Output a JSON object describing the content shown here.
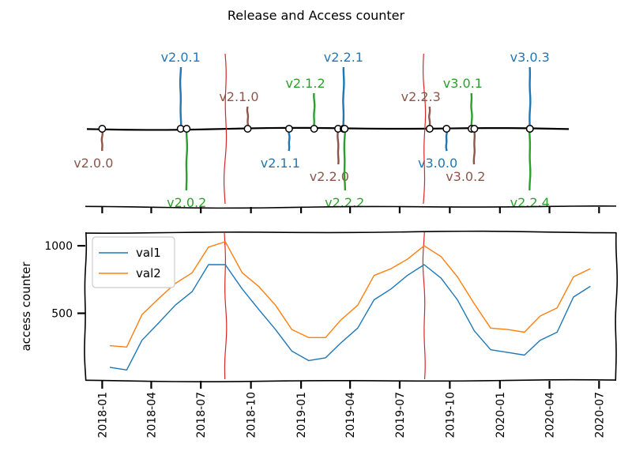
{
  "title": "Release and Access counter",
  "colors": {
    "blue": "#1f77b4",
    "orange": "#ff7f0e",
    "green": "#2ca02c",
    "brown": "#8c564b",
    "red": "#d62728"
  },
  "chart_data": [
    {
      "type": "timeline",
      "title": "Release and Access counter",
      "releases": [
        {
          "name": "v2.0.0",
          "date": "2018-01-01",
          "color": "brown",
          "level": -1
        },
        {
          "name": "v2.0.1",
          "date": "2018-05-25",
          "color": "blue",
          "level": 4
        },
        {
          "name": "v2.0.2",
          "date": "2018-06-05",
          "color": "green",
          "level": -4
        },
        {
          "name": "v2.1.0",
          "date": "2018-09-25",
          "color": "brown",
          "level": 1
        },
        {
          "name": "v2.1.1",
          "date": "2018-12-10",
          "color": "blue",
          "level": -1
        },
        {
          "name": "v2.1.2",
          "date": "2019-01-25",
          "color": "green",
          "level": 2
        },
        {
          "name": "v2.2.0",
          "date": "2019-03-10",
          "color": "brown",
          "level": -2
        },
        {
          "name": "v2.2.1",
          "date": "2019-03-20",
          "color": "blue",
          "level": 4
        },
        {
          "name": "v2.2.2",
          "date": "2019-03-22",
          "color": "green",
          "level": -4
        },
        {
          "name": "v2.2.3",
          "date": "2019-08-25",
          "color": "brown",
          "level": 1
        },
        {
          "name": "v3.0.0",
          "date": "2019-09-25",
          "color": "blue",
          "level": -1
        },
        {
          "name": "v3.0.1",
          "date": "2019-11-10",
          "color": "green",
          "level": 2
        },
        {
          "name": "v3.0.2",
          "date": "2019-11-15",
          "color": "brown",
          "level": -2
        },
        {
          "name": "v3.0.3",
          "date": "2020-02-25",
          "color": "blue",
          "level": 4
        },
        {
          "name": "v2.2.4",
          "date": "2020-02-25",
          "color": "green",
          "level": -4
        }
      ],
      "vlines": [
        "2018-08-15",
        "2019-08-15"
      ]
    },
    {
      "type": "line",
      "ylabel": "access counter",
      "yticks": [
        500,
        1000
      ],
      "ylim": [
        0,
        1100
      ],
      "xlim": [
        "2017-12-01",
        "2020-07-31"
      ],
      "xticks": [
        "2018-01",
        "2018-04",
        "2018-07",
        "2018-10",
        "2019-01",
        "2019-04",
        "2019-07",
        "2019-10",
        "2020-01",
        "2020-04",
        "2020-07"
      ],
      "legend_position": "top-left",
      "vlines": [
        "2018-08-15",
        "2019-08-15"
      ],
      "x": [
        "2018-01",
        "2018-02",
        "2018-03",
        "2018-04",
        "2018-05",
        "2018-06",
        "2018-07",
        "2018-08",
        "2018-09",
        "2018-10",
        "2018-11",
        "2018-12",
        "2019-01",
        "2019-02",
        "2019-03",
        "2019-04",
        "2019-05",
        "2019-06",
        "2019-07",
        "2019-08",
        "2019-09",
        "2019-10",
        "2019-11",
        "2019-12",
        "2020-01",
        "2020-02",
        "2020-03",
        "2020-04",
        "2020-05",
        "2020-06"
      ],
      "series": [
        {
          "name": "val1",
          "color": "blue",
          "values": [
            100,
            80,
            300,
            430,
            560,
            660,
            860,
            860,
            680,
            530,
            380,
            220,
            150,
            170,
            280,
            390,
            600,
            680,
            780,
            860,
            760,
            600,
            370,
            230,
            210,
            190,
            300,
            360,
            620,
            700
          ]
        },
        {
          "name": "val2",
          "color": "orange",
          "values": [
            260,
            250,
            490,
            610,
            720,
            800,
            990,
            1030,
            800,
            700,
            560,
            380,
            320,
            320,
            450,
            560,
            780,
            830,
            900,
            1000,
            920,
            770,
            570,
            390,
            380,
            360,
            480,
            540,
            770,
            830
          ]
        }
      ]
    }
  ]
}
